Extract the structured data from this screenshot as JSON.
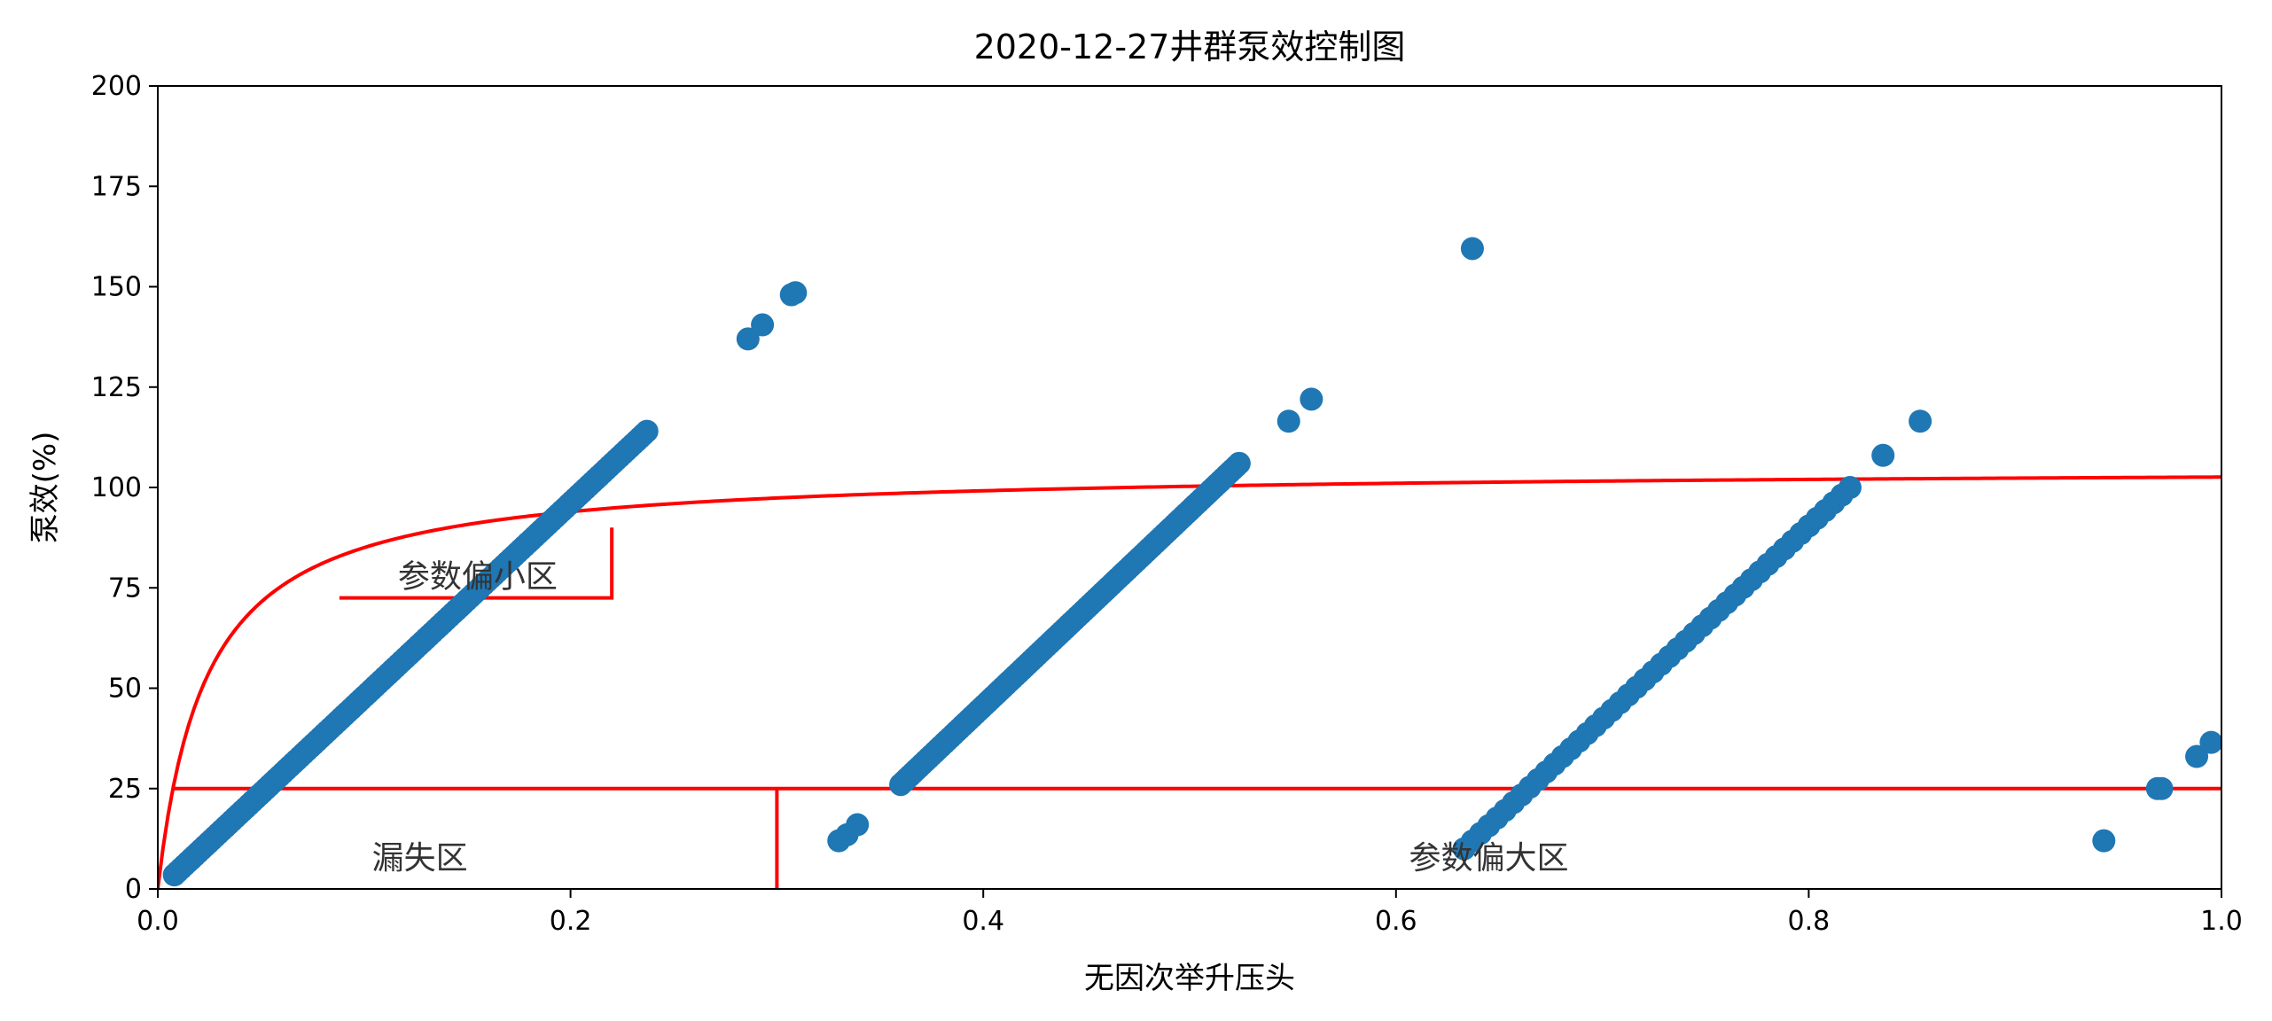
{
  "chart_data": {
    "type": "scatter",
    "title": "2020-12-27井群泵效控制图",
    "xlabel": "无因次举升压头",
    "ylabel": "泵效(%)",
    "xlim": [
      0,
      1.0
    ],
    "ylim": [
      0,
      200
    ],
    "xticks": [
      "0.0",
      "0.2",
      "0.4",
      "0.6",
      "0.8",
      "1.0"
    ],
    "yticks": [
      "0",
      "25",
      "50",
      "75",
      "100",
      "125",
      "150",
      "175",
      "200"
    ],
    "grid": false,
    "colors": {
      "points": "#1f77b4",
      "boundaries": "#ff0000"
    },
    "regions": [
      {
        "label": "参数偏小区",
        "x": 0.155,
        "y": 78
      },
      {
        "label": "漏失区",
        "x": 0.127,
        "y": 8
      },
      {
        "label": "参数偏大区",
        "x": 0.645,
        "y": 8
      }
    ],
    "boundaries": {
      "limit_curve": {
        "asymptote": 105,
        "k": 0.0235
      },
      "leak_line_y": 25,
      "leak_divider_x": 0.3,
      "small_box": {
        "x0": 0.088,
        "x1": 0.22,
        "y0": 72.5,
        "y1": 90
      }
    },
    "points_generation": [
      {
        "x0": 0.008,
        "y0": 3.5,
        "x1": 0.237,
        "y1": 114,
        "n": 140
      },
      {
        "x0": 0.36,
        "y0": 26,
        "x1": 0.524,
        "y1": 106,
        "n": 110
      },
      {
        "x0": 0.633,
        "y0": 10,
        "x1": 0.82,
        "y1": 100,
        "n": 48
      }
    ],
    "points": [
      [
        0.286,
        137
      ],
      [
        0.293,
        140.5
      ],
      [
        0.307,
        148
      ],
      [
        0.309,
        148.5
      ],
      [
        0.33,
        12
      ],
      [
        0.334,
        13.5
      ],
      [
        0.339,
        16
      ],
      [
        0.548,
        116.5
      ],
      [
        0.559,
        122
      ],
      [
        0.637,
        159.5
      ],
      [
        0.836,
        108
      ],
      [
        0.854,
        116.5
      ],
      [
        0.943,
        12
      ],
      [
        0.969,
        25
      ],
      [
        0.971,
        25
      ],
      [
        0.988,
        33
      ],
      [
        0.995,
        36.5
      ]
    ]
  }
}
